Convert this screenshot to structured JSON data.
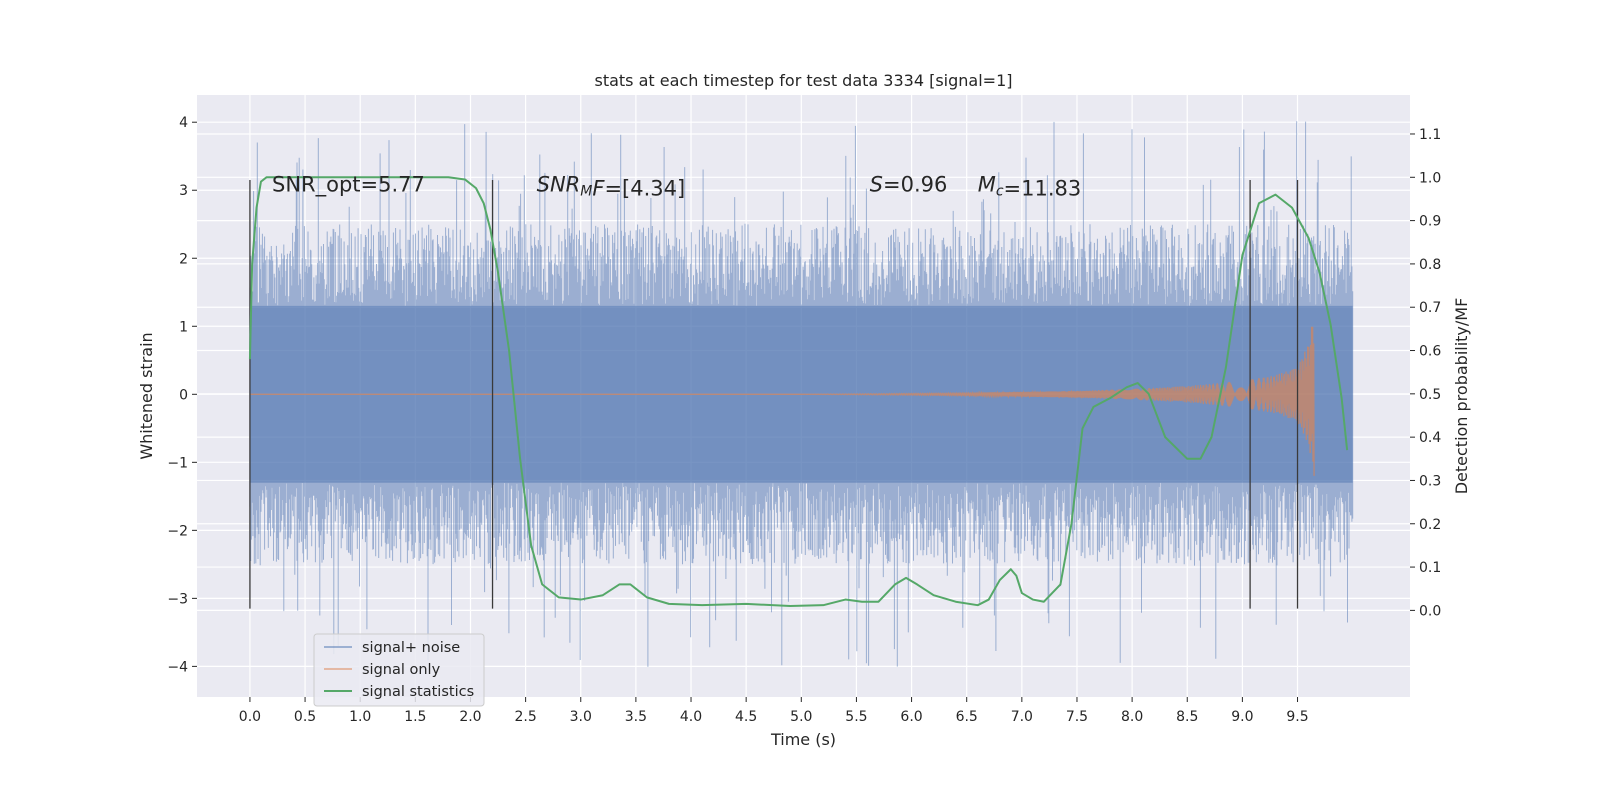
{
  "chart_data": {
    "type": "line",
    "title": "stats at each timestep for test data 3334 [signal=1]",
    "xlabel": "Time (s)",
    "ylabel": "Whitened strain",
    "y2label": "Detection probability/MF",
    "xlim": [
      -0.48,
      10.52
    ],
    "ylim": [
      -4.45,
      4.4
    ],
    "y2lim": [
      -0.2,
      1.19
    ],
    "grid": true,
    "background": "#eaeaf2",
    "x_ticks": [
      0.0,
      0.5,
      1.0,
      1.5,
      2.0,
      2.5,
      3.0,
      3.5,
      4.0,
      4.5,
      5.0,
      5.5,
      6.0,
      6.5,
      7.0,
      7.5,
      8.0,
      8.5,
      9.0,
      9.5
    ],
    "x_tick_labels": [
      "0.0",
      "0.5",
      "1.0",
      "1.5",
      "2.0",
      "2.5",
      "3.0",
      "3.5",
      "4.0",
      "4.5",
      "5.0",
      "5.5",
      "6.0",
      "6.5",
      "7.0",
      "7.5",
      "8.0",
      "8.5",
      "9.0",
      "9.5"
    ],
    "y_ticks": [
      -4,
      -3,
      -2,
      -1,
      0,
      1,
      2,
      3,
      4
    ],
    "y_tick_labels": [
      "−4",
      "−3",
      "−2",
      "−1",
      "0",
      "1",
      "2",
      "3",
      "4"
    ],
    "y2_ticks": [
      0.0,
      0.1,
      0.2,
      0.3,
      0.4,
      0.5,
      0.6,
      0.7,
      0.8,
      0.9,
      1.0,
      1.1
    ],
    "y2_tick_labels": [
      "0.0",
      "0.1",
      "0.2",
      "0.3",
      "0.4",
      "0.5",
      "0.6",
      "0.7",
      "0.8",
      "0.9",
      "1.0",
      "1.1"
    ],
    "annotations": [
      {
        "x": 0.2,
        "y": 3.1,
        "parts": [
          {
            "text": "SNR_opt=5.77",
            "style": "normal"
          }
        ]
      },
      {
        "x": 2.6,
        "y": 3.1,
        "parts": [
          {
            "text": "SNR",
            "style": "italic"
          },
          {
            "text": "M",
            "style": "italic-sub"
          },
          {
            "text": "F",
            "style": "italic"
          },
          {
            "text": "=[4.34]",
            "style": "normal"
          }
        ]
      },
      {
        "x": 5.62,
        "y": 3.1,
        "parts": [
          {
            "text": "S",
            "style": "italic"
          },
          {
            "text": "=0.96",
            "style": "normal"
          }
        ]
      },
      {
        "x": 6.6,
        "y": 3.1,
        "parts": [
          {
            "text": "M",
            "style": "italic"
          },
          {
            "text": "c",
            "style": "italic-sub"
          },
          {
            "text": "=11.83",
            "style": "normal"
          }
        ]
      }
    ],
    "vlines": [
      {
        "x": 0.0,
        "ymin": -3.15,
        "ymax": 3.15
      },
      {
        "x": 2.2,
        "ymin": -3.15,
        "ymax": 3.15
      },
      {
        "x": 9.07,
        "ymin": -3.15,
        "ymax": 3.15
      },
      {
        "x": 9.5,
        "ymin": -3.15,
        "ymax": 3.15
      }
    ],
    "series": [
      {
        "name": "signal+ noise",
        "color": "#4c72b0",
        "axis": "left",
        "kind": "noise",
        "x_range": [
          0.0,
          10.0
        ],
        "typical_range": [
          -1.3,
          1.3
        ],
        "envelope_range": [
          -2.5,
          2.5
        ],
        "extreme_range": [
          -4.05,
          4.05
        ]
      },
      {
        "name": "signal only",
        "color": "#dd8452",
        "axis": "left",
        "kind": "chirp",
        "x_range": [
          0.0,
          9.65
        ],
        "envelope": {
          "x": [
            0.0,
            5.0,
            6.5,
            7.5,
            8.0,
            8.5,
            9.0,
            9.3,
            9.5,
            9.6,
            9.65
          ],
          "amp": [
            0.0,
            0.0,
            0.02,
            0.05,
            0.08,
            0.12,
            0.2,
            0.28,
            0.4,
            0.75,
            1.2
          ]
        }
      },
      {
        "name": "signal statistics",
        "color": "#55a868",
        "axis": "right",
        "kind": "line",
        "x": [
          0.0,
          0.02,
          0.06,
          0.1,
          0.15,
          0.25,
          0.4,
          0.6,
          1.0,
          1.5,
          1.8,
          1.95,
          2.05,
          2.12,
          2.18,
          2.25,
          2.35,
          2.45,
          2.55,
          2.65,
          2.8,
          3.0,
          3.2,
          3.35,
          3.45,
          3.6,
          3.8,
          4.1,
          4.5,
          4.9,
          5.2,
          5.4,
          5.55,
          5.7,
          5.85,
          5.95,
          6.05,
          6.2,
          6.4,
          6.6,
          6.7,
          6.8,
          6.9,
          6.95,
          7.0,
          7.1,
          7.2,
          7.35,
          7.45,
          7.55,
          7.65,
          7.8,
          7.95,
          8.05,
          8.15,
          8.3,
          8.5,
          8.62,
          8.72,
          8.85,
          9.0,
          9.15,
          9.3,
          9.45,
          9.6,
          9.7,
          9.8,
          9.9,
          9.95
        ],
        "y": [
          0.58,
          0.8,
          0.93,
          0.99,
          1.0,
          1.0,
          1.0,
          1.0,
          1.0,
          1.0,
          1.0,
          0.995,
          0.975,
          0.94,
          0.88,
          0.78,
          0.6,
          0.35,
          0.15,
          0.06,
          0.03,
          0.025,
          0.035,
          0.06,
          0.06,
          0.03,
          0.015,
          0.012,
          0.015,
          0.01,
          0.012,
          0.025,
          0.02,
          0.02,
          0.06,
          0.075,
          0.06,
          0.035,
          0.02,
          0.012,
          0.025,
          0.07,
          0.095,
          0.08,
          0.04,
          0.025,
          0.02,
          0.06,
          0.2,
          0.42,
          0.47,
          0.49,
          0.515,
          0.525,
          0.5,
          0.4,
          0.35,
          0.35,
          0.4,
          0.56,
          0.82,
          0.94,
          0.96,
          0.93,
          0.86,
          0.78,
          0.66,
          0.49,
          0.37
        ]
      }
    ],
    "legend": {
      "position": "lower-left",
      "entries": [
        "signal+ noise",
        "signal only",
        "signal statistics"
      ]
    }
  }
}
